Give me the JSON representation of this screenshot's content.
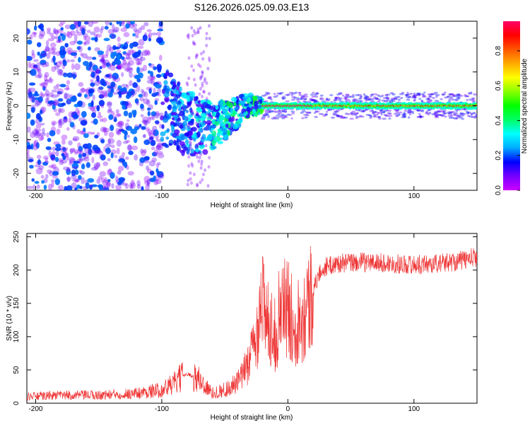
{
  "title": "S126.2026.025.09.03.E13",
  "chart_data": [
    {
      "type": "heatmap",
      "xlabel": "Height of straight line (km)",
      "ylabel": "Frequency (Hz)",
      "xlim": [
        -207,
        150
      ],
      "ylim": [
        -25,
        25
      ],
      "xticks": [
        -200,
        -100,
        0,
        100
      ],
      "yticks": [
        -20,
        -10,
        0,
        10,
        20
      ],
      "colorbar": {
        "label": "Normalized spectral amplitude",
        "range": [
          0,
          0.97
        ],
        "ticks": [
          0,
          0.2,
          0.4,
          0.6,
          0.8
        ],
        "tick_labels": [
          "0.0",
          "0.2",
          "0.4",
          "0.6",
          "0.8"
        ],
        "colors": [
          "#ffffff",
          "#cc00ff",
          "#7700ff",
          "#0000ff",
          "#00aaff",
          "#00ffff",
          "#00ff66",
          "#00ff00",
          "#88ff00",
          "#ffff00",
          "#ffaa00",
          "#ff5500",
          "#ff0000",
          "#ff0066"
        ]
      },
      "regions": [
        {
          "name": "noise",
          "x_range": [
            -207,
            -100
          ],
          "freq_spread": 25,
          "amplitude": [
            0.05,
            0.18
          ]
        },
        {
          "name": "transition",
          "x_range": [
            -100,
            -20
          ],
          "center_start": 0,
          "center_mid": -6,
          "amplitude": [
            0.1,
            0.4
          ]
        },
        {
          "name": "carrier",
          "x_range": [
            -20,
            150
          ],
          "center": 0,
          "width": 1.5,
          "amplitude": [
            0.4,
            0.97
          ]
        }
      ]
    },
    {
      "type": "line",
      "xlabel": "Height of straight line (km)",
      "ylabel": "SNR (10 * v/v)",
      "xlim": [
        -207,
        150
      ],
      "ylim": [
        0,
        255
      ],
      "xticks": [
        -200,
        -100,
        0,
        100
      ],
      "yticks": [
        0,
        50,
        100,
        150,
        200,
        250
      ],
      "color": "#ee3333",
      "series": [
        {
          "name": "SNR",
          "x": [
            -207,
            -180,
            -150,
            -120,
            -100,
            -90,
            -80,
            -70,
            -60,
            -50,
            -40,
            -35,
            -30,
            -25,
            -22,
            -20,
            -18,
            -15,
            -10,
            -5,
            0,
            5,
            10,
            15,
            20,
            25,
            30,
            40,
            60,
            80,
            100,
            120,
            140,
            150
          ],
          "y": [
            10,
            12,
            12,
            15,
            20,
            30,
            45,
            35,
            15,
            20,
            30,
            45,
            70,
            95,
            160,
            170,
            110,
            130,
            100,
            150,
            140,
            120,
            130,
            145,
            170,
            195,
            205,
            210,
            212,
            210,
            208,
            210,
            215,
            220
          ]
        }
      ]
    }
  ]
}
